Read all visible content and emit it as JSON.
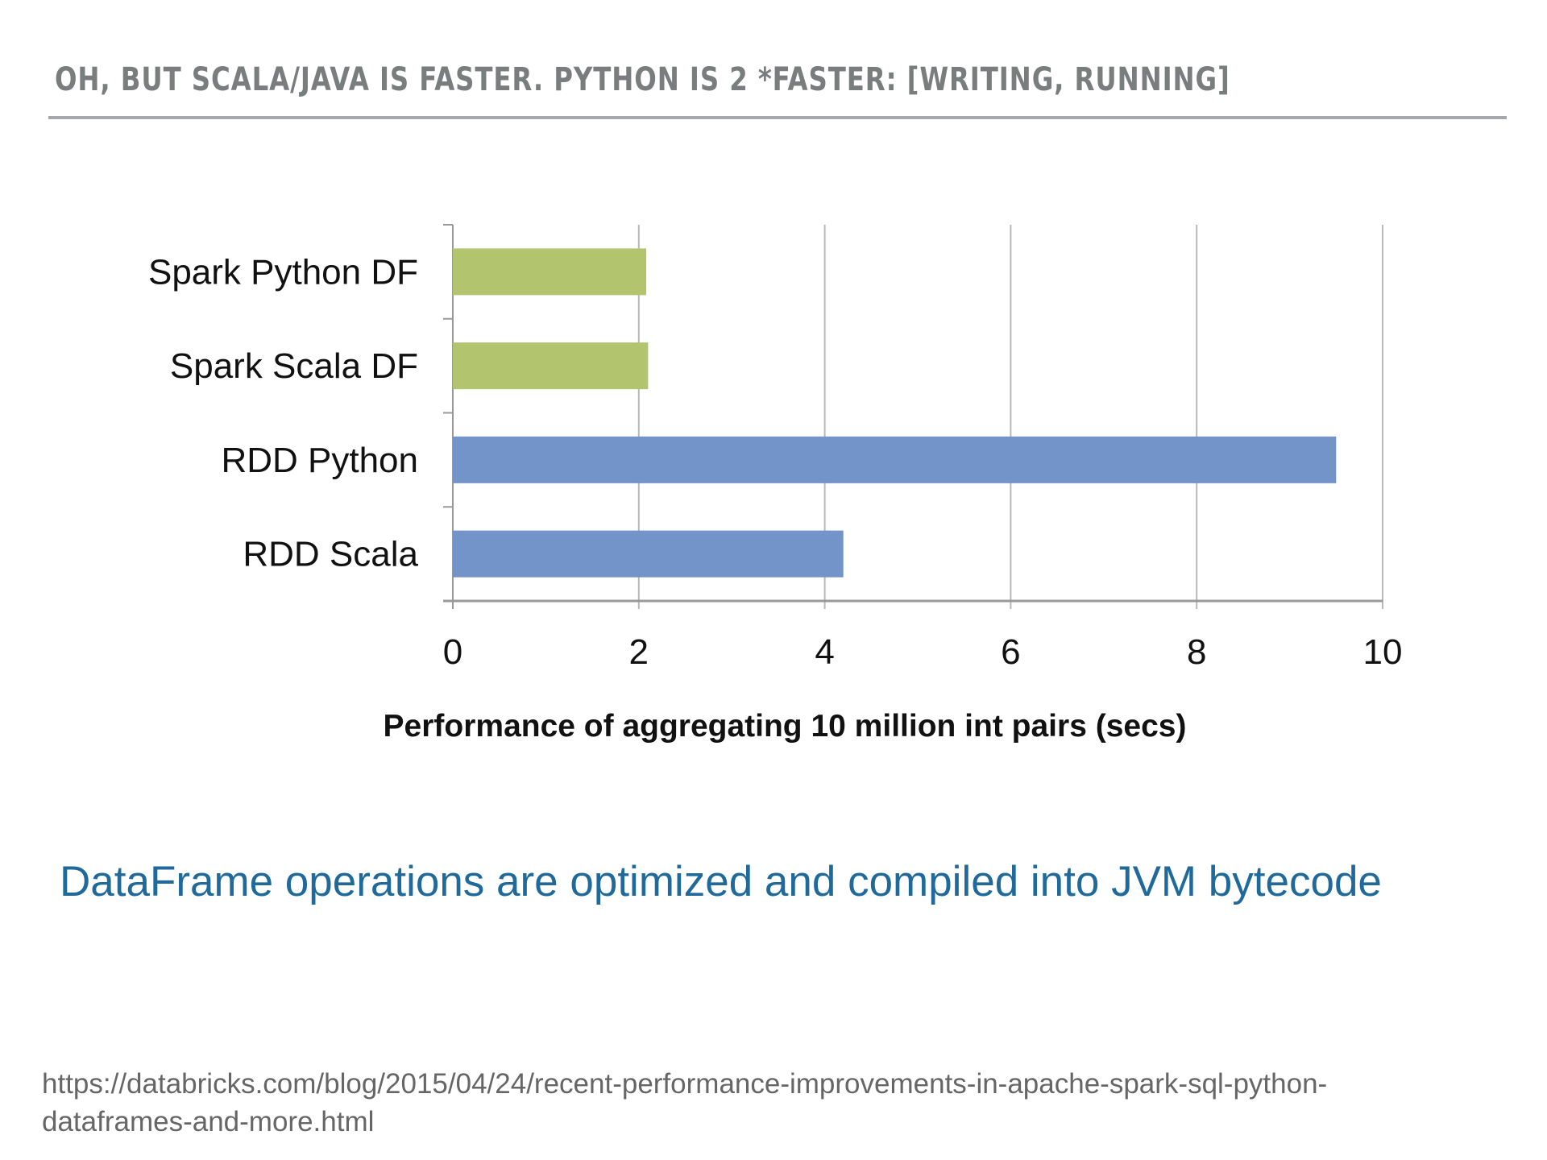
{
  "title": "OH, BUT SCALA/JAVA IS FASTER. PYTHON IS 2 *FASTER: [WRITING, RUNNING]",
  "caption": "DataFrame operations are optimized and compiled into JVM bytecode",
  "source_line1": "https://databricks.com/blog/2015/04/24/recent-performance-improvements-in-apache-spark-sql-python-",
  "source_line2": "dataframes-and-more.html",
  "colors": {
    "df": "#b2c46e",
    "rdd": "#7394c8",
    "grid": "#b8b8b8"
  },
  "chart_data": {
    "type": "bar",
    "orientation": "horizontal",
    "categories": [
      "Spark Python DF",
      "Spark Scala DF",
      "RDD Python",
      "RDD Scala"
    ],
    "values": [
      2.08,
      2.1,
      9.5,
      4.2
    ],
    "series_colors": [
      "df",
      "df",
      "rdd",
      "rdd"
    ],
    "title": "",
    "xlabel": "Performance of aggregating 10 million int pairs (secs)",
    "ylabel": "",
    "xlim": [
      0,
      10
    ],
    "xticks": [
      0,
      2,
      4,
      6,
      8,
      10
    ],
    "grid": true
  }
}
